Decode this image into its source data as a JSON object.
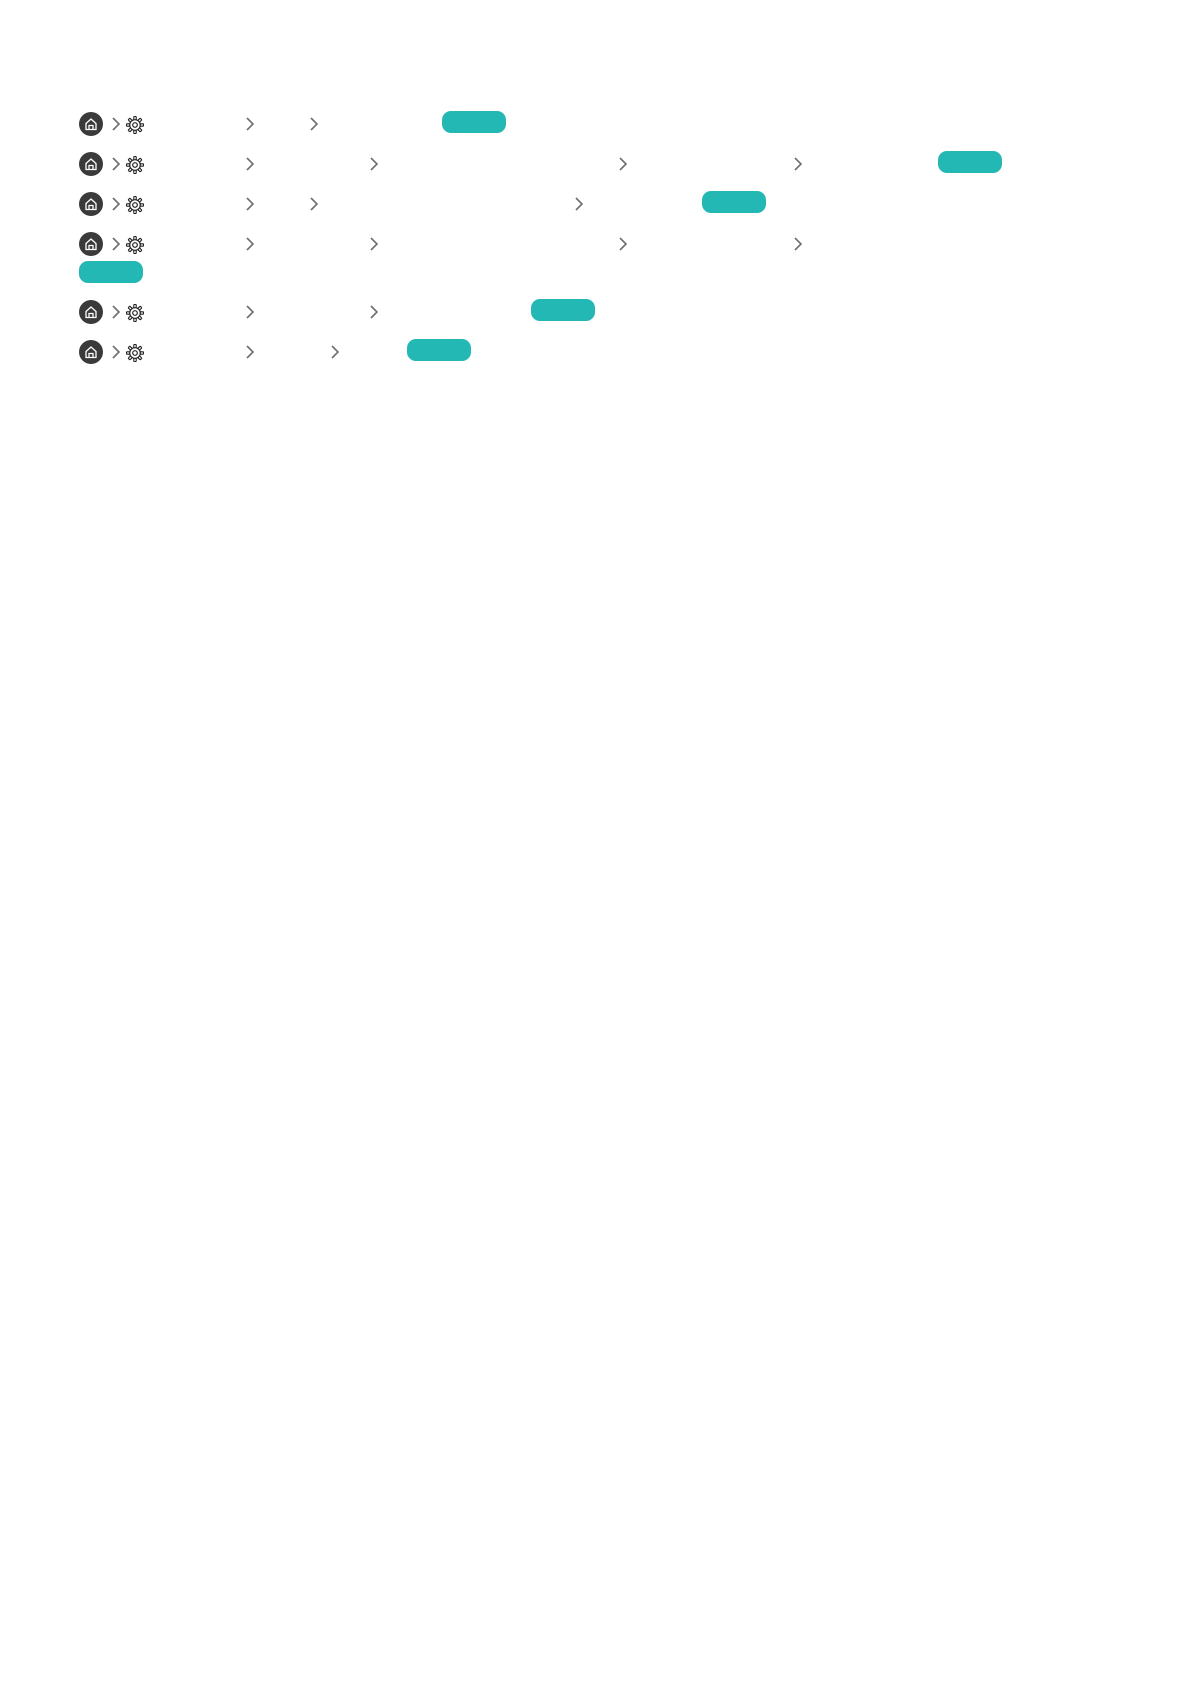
{
  "icons": {
    "home": "home-icon",
    "settings": "gear-icon",
    "separator": "chevron-right-icon",
    "action": "try-now-button"
  },
  "colors": {
    "home_bg": "#3a3a3a",
    "chevron": "#6e6e6e",
    "button": "#23b8b4"
  }
}
